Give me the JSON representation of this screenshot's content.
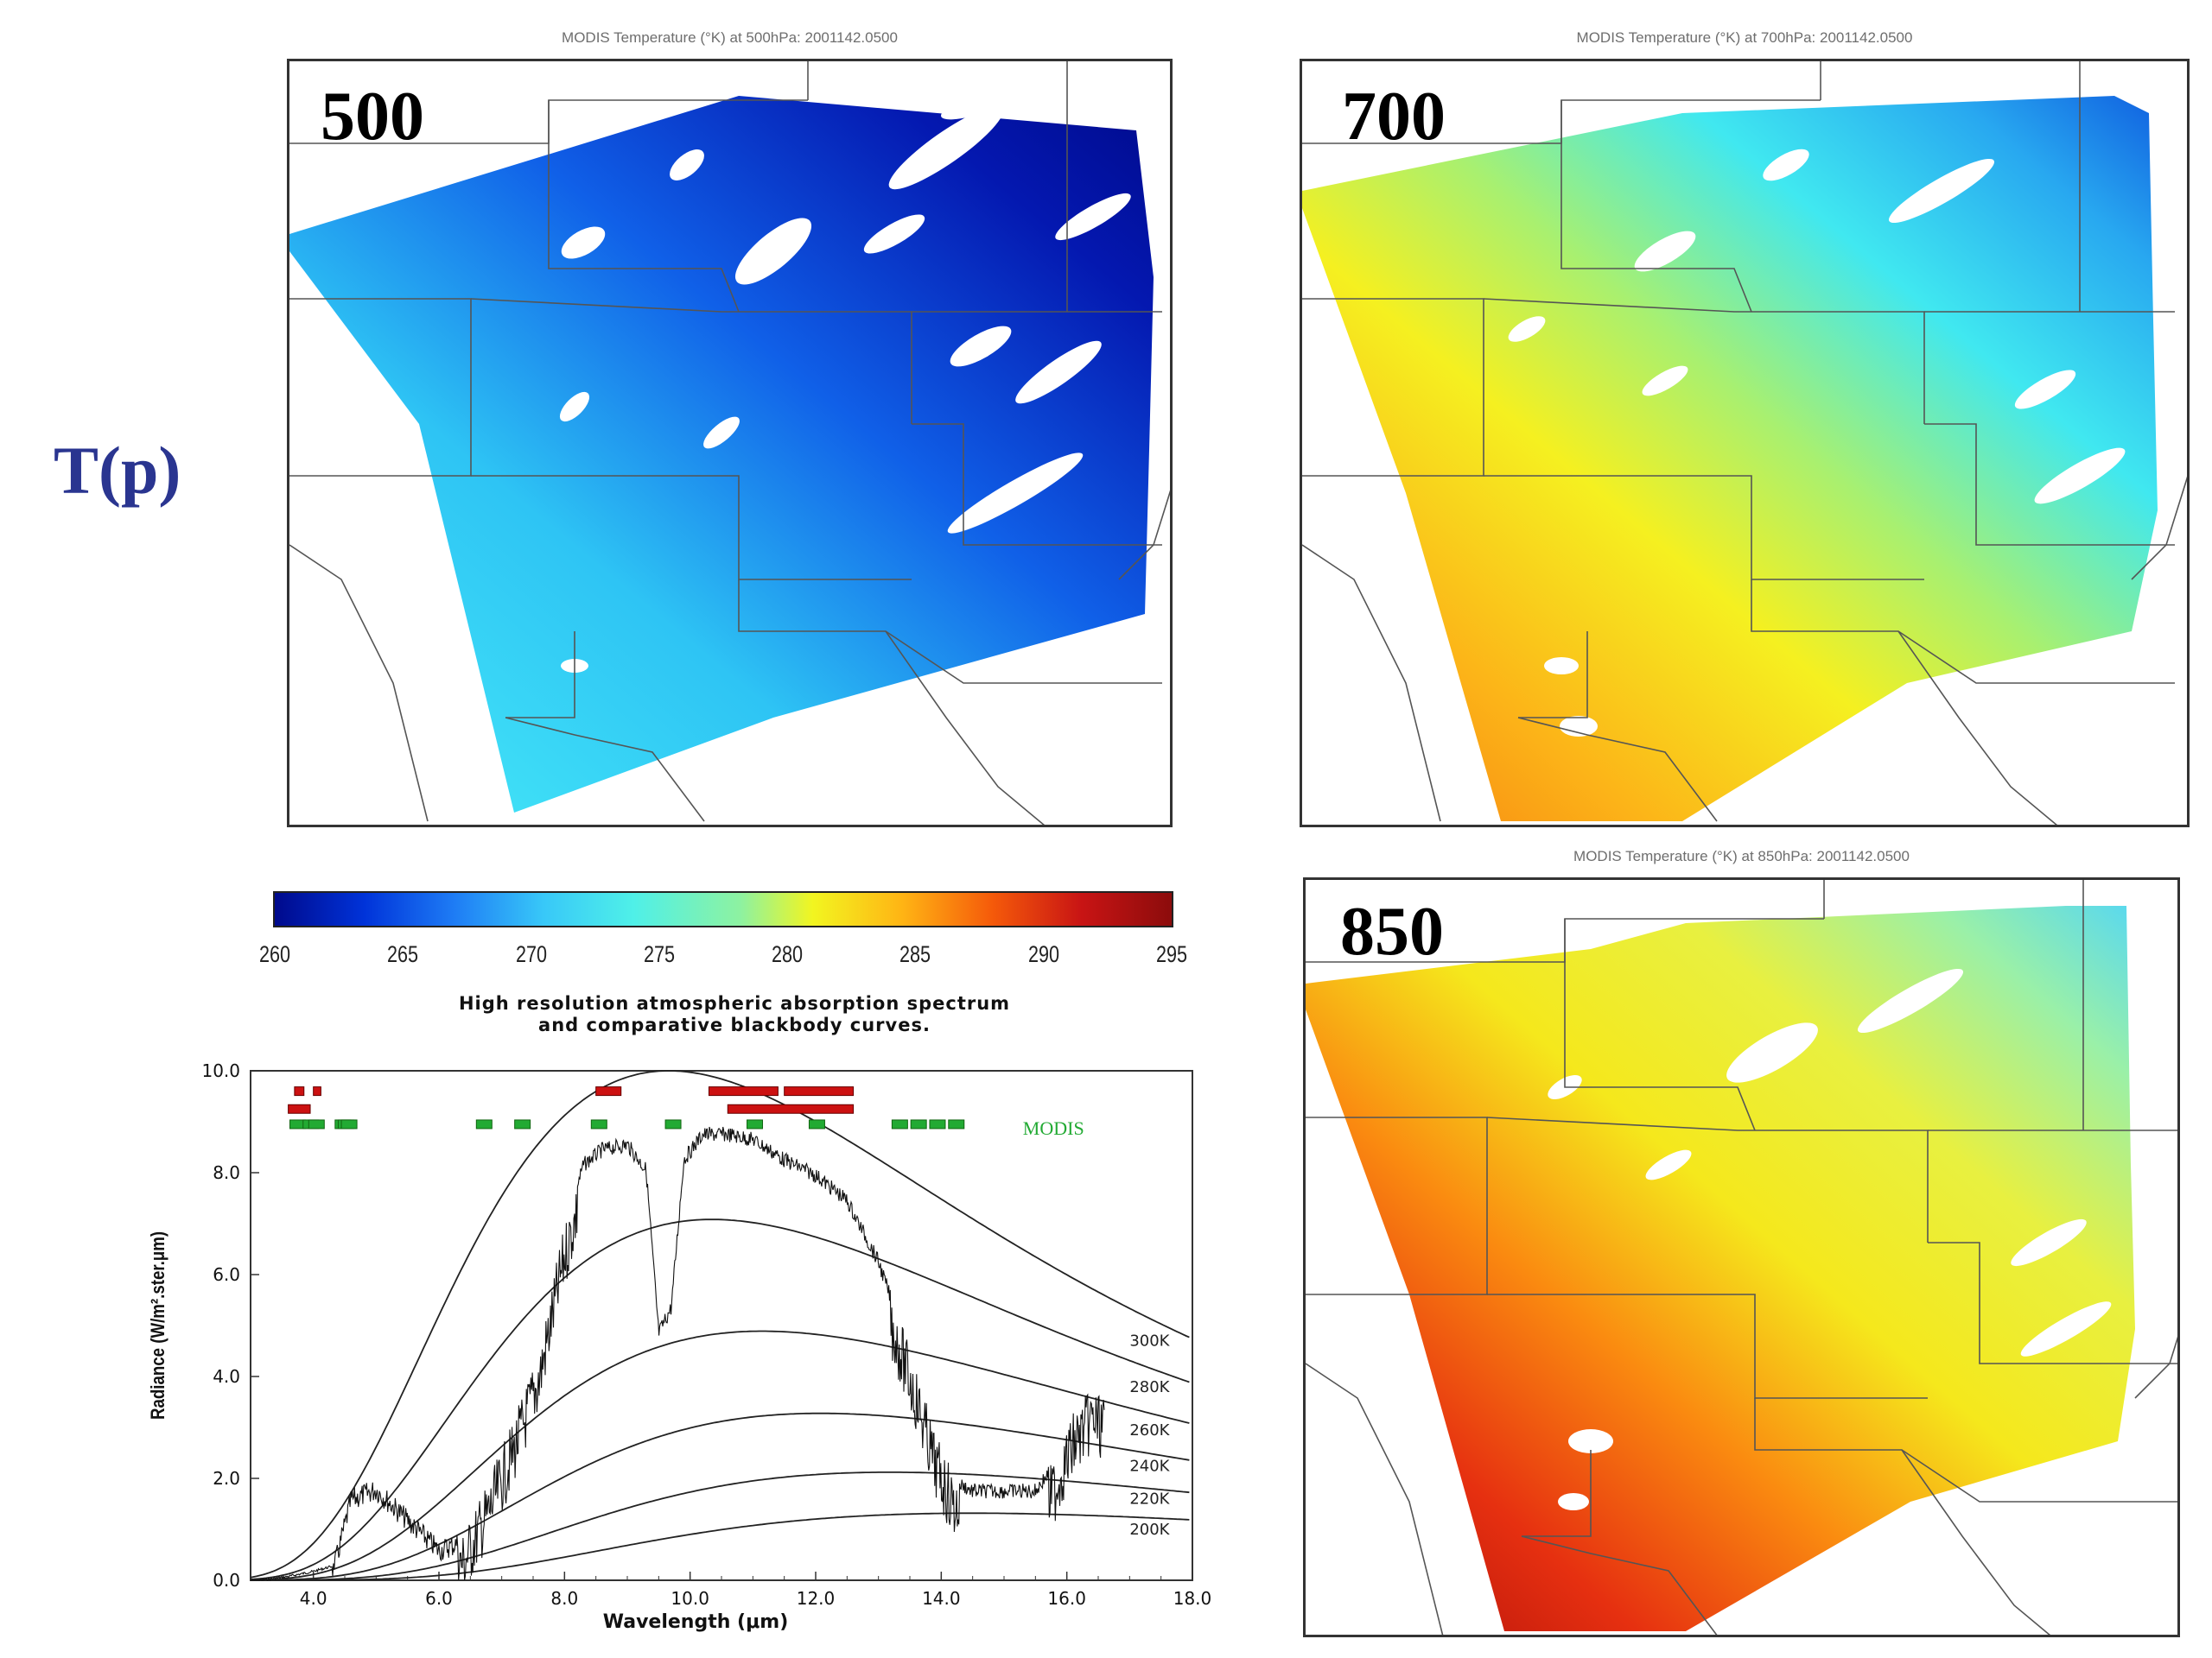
{
  "side_label": "T(p)",
  "maps": [
    {
      "title": "MODIS Temperature (°K) at 500hPa: 2001142.0500",
      "level": "500"
    },
    {
      "title": "MODIS Temperature (°K) at 700hPa: 2001142.0500",
      "level": "700"
    },
    {
      "title": "MODIS Temperature (°K) at 850hPa: 2001142.0500",
      "level": "850"
    }
  ],
  "colorbar": {
    "ticks": [
      "260",
      "265",
      "270",
      "275",
      "280",
      "285",
      "290",
      "295"
    ],
    "colors": [
      "#000a8c",
      "#1e7cf5",
      "#4ff0e8",
      "#f2f520",
      "#f55a0a",
      "#8c0c0c"
    ]
  },
  "spectrum": {
    "title_line1": "High resolution atmospheric absorption spectrum",
    "title_line2": "and comparative blackbody curves.",
    "xlabel": "Wavelength (μm)",
    "ylabel": "Radiance (W/m².ster.μm)",
    "x_ticks": [
      "4.0",
      "6.0",
      "8.0",
      "10.0",
      "12.0",
      "14.0",
      "16.0",
      "18.0"
    ],
    "y_ticks": [
      "0.0",
      "2.0",
      "4.0",
      "6.0",
      "8.0",
      "10.0"
    ],
    "xlim": [
      3.0,
      18.0
    ],
    "ylim": [
      0.0,
      10.0
    ],
    "blackbody_labels": [
      "300K",
      "280K",
      "260K",
      "240K",
      "220K",
      "200K"
    ],
    "band_label": "MODIS"
  },
  "chart_data": {
    "type": "line",
    "title": "High resolution atmospheric absorption spectrum and comparative blackbody curves.",
    "xlabel": "Wavelength (μm)",
    "ylabel": "Radiance (W/m².ster.μm)",
    "xlim": [
      3.0,
      18.0
    ],
    "ylim": [
      0.0,
      10.0
    ],
    "series": [
      {
        "name": "300K",
        "temperature": 300
      },
      {
        "name": "280K",
        "temperature": 280
      },
      {
        "name": "260K",
        "temperature": 260
      },
      {
        "name": "240K",
        "temperature": 240
      },
      {
        "name": "220K",
        "temperature": 220
      },
      {
        "name": "200K",
        "temperature": 200
      }
    ],
    "spectrum_envelope": {
      "x": [
        3.0,
        3.6,
        4.0,
        4.3,
        4.6,
        5.0,
        5.5,
        6.0,
        6.4,
        6.8,
        7.2,
        7.6,
        8.0,
        8.3,
        8.6,
        9.0,
        9.3,
        9.5,
        9.7,
        9.9,
        10.2,
        10.6,
        11.0,
        11.5,
        12.0,
        12.5,
        13.0,
        13.3,
        13.6,
        13.9,
        14.2,
        14.5,
        15.0,
        15.5,
        15.8,
        16.1,
        16.4,
        16.6
      ],
      "y": [
        0.0,
        0.1,
        0.2,
        0.3,
        1.8,
        2.0,
        1.4,
        0.8,
        1.0,
        2.0,
        3.2,
        4.6,
        7.0,
        8.3,
        8.6,
        8.7,
        8.2,
        5.0,
        5.5,
        8.4,
        8.9,
        8.9,
        8.8,
        8.4,
        8.1,
        7.6,
        6.4,
        5.3,
        4.2,
        2.9,
        2.1,
        1.9,
        1.9,
        1.9,
        2.4,
        3.3,
        3.8,
        3.6
      ]
    },
    "modis_bands_green_um": [
      3.75,
      3.96,
      4.05,
      4.47,
      4.52,
      4.57,
      6.72,
      7.33,
      8.55,
      9.73,
      11.03,
      12.02,
      13.34,
      13.64,
      13.94,
      14.24
    ],
    "modis_bands_red_um": [
      3.75,
      3.96,
      4.05,
      8.55,
      10.7,
      11.9,
      11.6
    ]
  }
}
